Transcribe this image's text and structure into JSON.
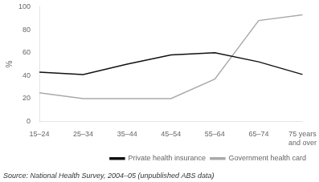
{
  "chart_data": {
    "type": "line",
    "categories": [
      "15–24",
      "25–34",
      "35–44",
      "45–54",
      "55–64",
      "65–74",
      "75 years\nand over"
    ],
    "series": [
      {
        "name": "Private health insurance",
        "color": "#111111",
        "values": [
          43,
          41,
          50,
          58,
          60,
          52,
          41
        ]
      },
      {
        "name": "Government health card",
        "color": "#aaaaaa",
        "values": [
          25,
          20,
          20,
          20,
          37,
          88,
          93
        ]
      }
    ],
    "ylabel": "%",
    "ylim": [
      0,
      100
    ],
    "yticks": [
      0,
      20,
      40,
      60,
      80,
      100
    ],
    "grid": false,
    "legend": "lower right",
    "annotations": [
      "Source: National Health Survey, 2004–05 (unpublished ABS data)"
    ]
  }
}
